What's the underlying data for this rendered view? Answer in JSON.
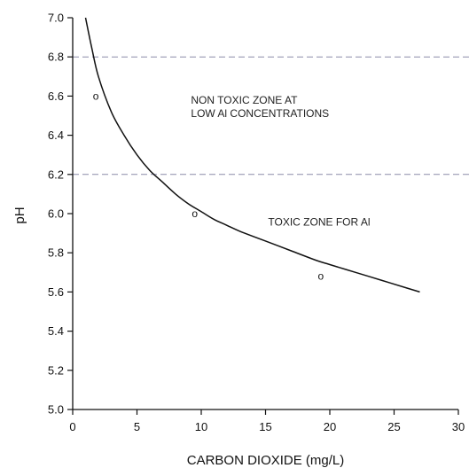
{
  "chart_data": {
    "type": "line",
    "title": "",
    "xlabel": "CARBON DIOXIDE (mg/L)",
    "ylabel": "pH",
    "xlim": [
      0,
      30
    ],
    "ylim": [
      5.0,
      7.0
    ],
    "xticks": [
      "0",
      "5",
      "10",
      "15",
      "20",
      "25",
      "30"
    ],
    "yticks": [
      "5.0",
      "5.2",
      "5.4",
      "5.6",
      "5.8",
      "6.0",
      "6.2",
      "6.4",
      "6.6",
      "6.8",
      "7.0"
    ],
    "grid": false,
    "legend": "none",
    "series": [
      {
        "kind": "curve",
        "x": [
          1.0,
          1.5,
          2.0,
          3.0,
          4.0,
          5.0,
          6.0,
          7.0,
          8.0,
          9.0,
          10.0,
          11.0,
          12.0,
          13.0,
          15.0,
          17.0,
          19.0,
          20.0,
          22.0,
          24.0,
          26.0,
          27.0
        ],
        "y": [
          7.0,
          6.84,
          6.7,
          6.52,
          6.4,
          6.3,
          6.22,
          6.16,
          6.1,
          6.05,
          6.01,
          5.97,
          5.94,
          5.91,
          5.86,
          5.81,
          5.76,
          5.74,
          5.7,
          5.66,
          5.62,
          5.6
        ]
      },
      {
        "kind": "points",
        "marker": "o",
        "x": [
          1.8,
          9.5,
          19.3
        ],
        "y": [
          6.6,
          6.0,
          5.68
        ]
      }
    ],
    "reference_lines": [
      {
        "axis": "y",
        "value": 6.8,
        "style": "dashed"
      },
      {
        "axis": "y",
        "value": 6.2,
        "style": "dashed"
      }
    ],
    "annotations": [
      {
        "lines": [
          "NON TOXIC ZONE AT",
          "LOW Al CONCENTRATIONS"
        ],
        "x": 9.2,
        "y": 6.56
      },
      {
        "lines": [
          "TOXIC ZONE FOR Al"
        ],
        "x": 15.2,
        "y": 5.94
      }
    ],
    "colors": {
      "axis": "#111111",
      "curve": "#111111",
      "reference": "#8a8aa8",
      "text": "#222222"
    }
  }
}
